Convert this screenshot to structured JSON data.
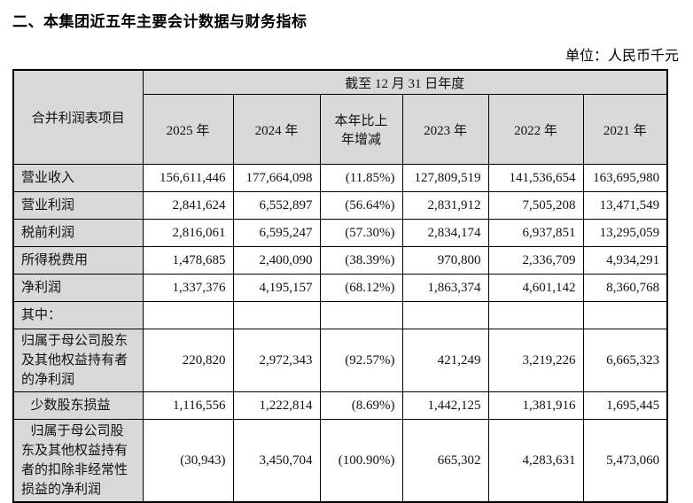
{
  "document": {
    "section_title": "二、本集团近五年主要会计数据与财务指标",
    "unit_label": "单位：人民币千元"
  },
  "colors": {
    "header_and_label_bg": "#d9d9d9",
    "border": "#000000",
    "text": "#111111"
  },
  "table": {
    "corner_header": "合并利润表项目",
    "period_header": "截至 12 月 31 日年度",
    "year_headers": [
      "2025 年",
      "2024 年",
      "本年比上\n年增减",
      "2023 年",
      "2022 年",
      "2021 年"
    ],
    "rows": [
      {
        "label": "营业收入",
        "indent": false,
        "values": [
          "156,611,446",
          "177,664,098",
          "(11.85%)",
          "127,809,519",
          "141,536,654",
          "163,695,980"
        ]
      },
      {
        "label": "营业利润",
        "indent": false,
        "values": [
          "2,841,624",
          "6,552,897",
          "(56.64%)",
          "2,831,912",
          "7,505,208",
          "13,471,549"
        ]
      },
      {
        "label": "税前利润",
        "indent": false,
        "values": [
          "2,816,061",
          "6,595,247",
          "(57.30%)",
          "2,834,174",
          "6,937,851",
          "13,295,059"
        ]
      },
      {
        "label": "所得税费用",
        "indent": false,
        "values": [
          "1,478,685",
          "2,400,090",
          "(38.39%)",
          "970,800",
          "2,336,709",
          "4,934,291"
        ]
      },
      {
        "label": "净利润",
        "indent": false,
        "values": [
          "1,337,376",
          "4,195,157",
          "(68.12%)",
          "1,863,374",
          "4,601,142",
          "8,360,768"
        ]
      },
      {
        "label": "其中：",
        "indent": false,
        "values": [
          "",
          "",
          "",
          "",
          "",
          ""
        ]
      },
      {
        "label": "归属于母公司股东及其他权益持有者的净利润",
        "indent": false,
        "values": [
          "220,820",
          "2,972,343",
          "(92.57%)",
          "421,249",
          "3,219,226",
          "6,665,323"
        ]
      },
      {
        "label": "少数股东损益",
        "indent": true,
        "values": [
          "1,116,556",
          "1,222,814",
          "(8.69%)",
          "1,442,125",
          "1,381,916",
          "1,695,445"
        ]
      },
      {
        "label": "归属于母公司股东及其他权益持有者的扣除非经常性损益的净利润",
        "indent": true,
        "values": [
          "(30,943)",
          "3,450,704",
          "(100.90%)",
          "665,302",
          "4,283,631",
          "5,473,060"
        ]
      }
    ]
  }
}
